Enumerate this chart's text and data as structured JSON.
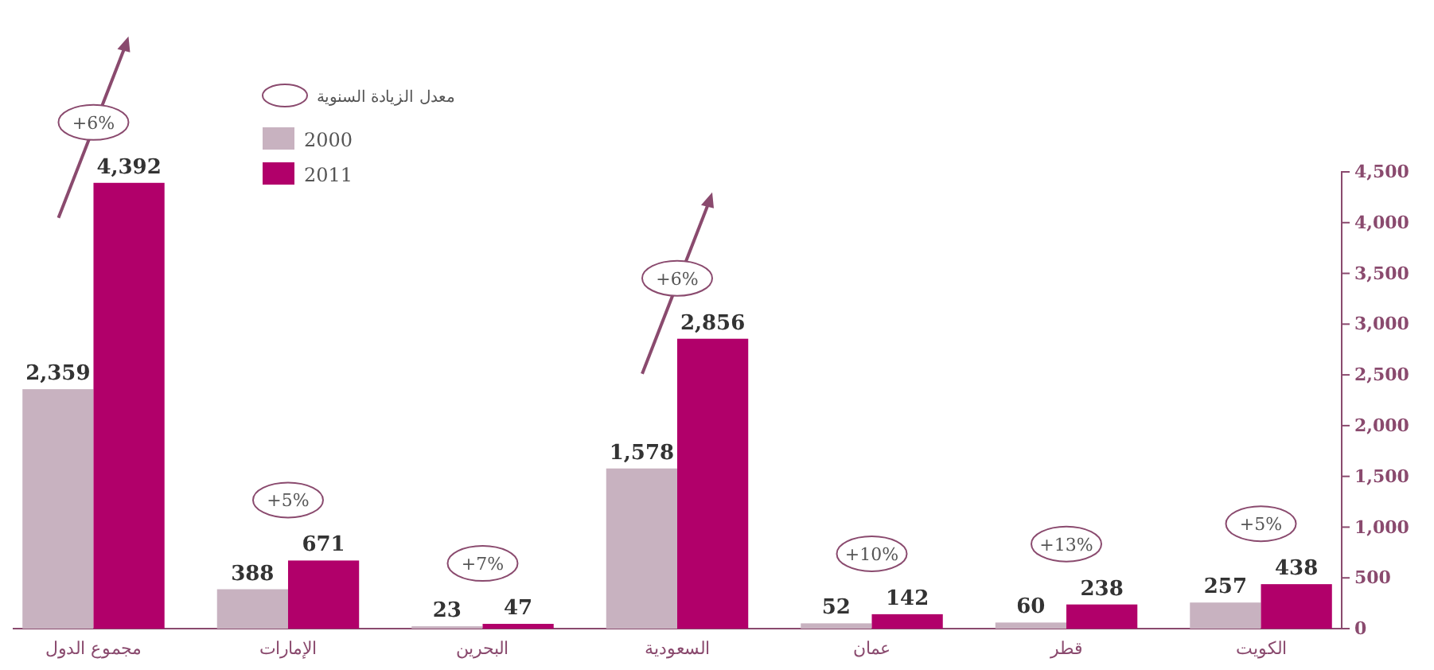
{
  "chart_data": {
    "type": "bar",
    "categories": [
      "مجموع الدول",
      "الإمارات",
      "البحرين",
      "السعودية",
      "عمان",
      "قطر",
      "الكويت"
    ],
    "series": [
      {
        "name": "2000",
        "color": "#c8b2c0",
        "values": [
          2359,
          388,
          23,
          1578,
          52,
          60,
          257
        ],
        "value_labels": [
          "2,359",
          "388",
          "23",
          "1,578",
          "52",
          "60",
          "257"
        ]
      },
      {
        "name": "2011",
        "color": "#b1006a",
        "values": [
          4392,
          671,
          47,
          2856,
          142,
          238,
          438
        ],
        "value_labels": [
          "4,392",
          "671",
          "47",
          "2,856",
          "142",
          "238",
          "438"
        ]
      }
    ],
    "ylim": [
      0,
      4500
    ],
    "yticks": [
      0,
      500,
      {
        "value": 1000,
        "label": "1,000"
      },
      {
        "value": 1500,
        "label": "1,500"
      },
      {
        "value": 2000,
        "label": "2,000"
      },
      {
        "value": 2500,
        "label": "2,500"
      },
      {
        "value": 3000,
        "label": "3,000"
      },
      {
        "value": 3500,
        "label": "3,500"
      },
      {
        "value": 4000,
        "label": "4,000"
      },
      {
        "value": 4500,
        "label": "4,500"
      }
    ],
    "legend": "top left",
    "legend_title": "معدل الزيادة السنوية",
    "grid": false,
    "annotations": [
      "+6%",
      "+5%",
      "+7%",
      "+6%",
      "+10%",
      "+13%",
      "+5%"
    ]
  }
}
